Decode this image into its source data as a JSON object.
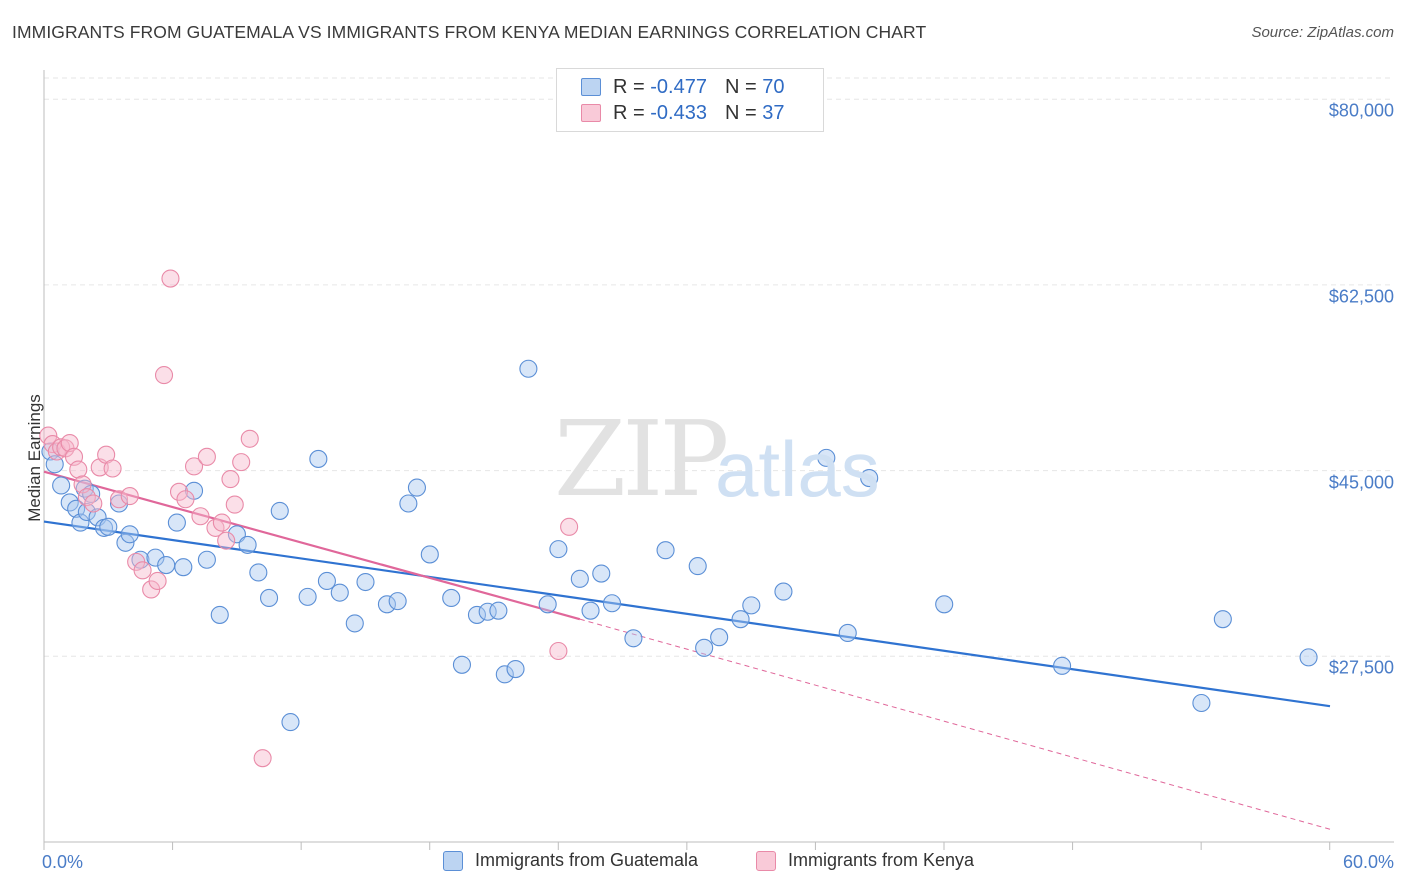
{
  "title": "IMMIGRANTS FROM GUATEMALA VS IMMIGRANTS FROM KENYA MEDIAN EARNINGS CORRELATION CHART",
  "source": "Source: ZipAtlas.com",
  "watermark": {
    "zip": "ZIP",
    "atlas": "atlas"
  },
  "legend": {
    "rows": [
      {
        "r_label": "R =",
        "r_value": "-0.477",
        "n_label": "N =",
        "n_value": "70"
      },
      {
        "r_label": "R =",
        "r_value": "-0.433",
        "n_label": "N =",
        "n_value": "37"
      }
    ]
  },
  "colors": {
    "guatemala_fill": "#a9c8ef",
    "guatemala_stroke": "#5b8fd6",
    "guatemala_line": "#2f73d1",
    "kenya_fill": "#f7b8cb",
    "kenya_stroke": "#e98aa8",
    "kenya_line": "#e0679a",
    "grid": "#e6e6e6",
    "tick_label": "#4a7cc7"
  },
  "chart_data": {
    "type": "scatter",
    "title": "IMMIGRANTS FROM GUATEMALA VS IMMIGRANTS FROM KENYA MEDIAN EARNINGS CORRELATION CHART",
    "xlabel": "",
    "ylabel": "Median Earnings",
    "xlim": [
      0,
      60
    ],
    "ylim": [
      10000,
      82000
    ],
    "x_tick_labels": [
      "0.0%",
      "60.0%"
    ],
    "y_ticks": [
      27500,
      45000,
      62500,
      80000
    ],
    "y_tick_labels": [
      "$27,500",
      "$45,000",
      "$62,500",
      "$80,000"
    ],
    "grid": true,
    "legend_position": "top-center",
    "series": [
      {
        "name": "Immigrants from Guatemala",
        "r": -0.477,
        "n": 70,
        "trend": {
          "x": [
            0,
            60
          ],
          "y": [
            40200,
            22800
          ]
        },
        "points": [
          [
            0.3,
            46800
          ],
          [
            0.5,
            45600
          ],
          [
            0.8,
            43600
          ],
          [
            1.2,
            42000
          ],
          [
            1.5,
            41400
          ],
          [
            1.7,
            40100
          ],
          [
            1.9,
            43300
          ],
          [
            2.0,
            41100
          ],
          [
            2.2,
            42800
          ],
          [
            2.5,
            40600
          ],
          [
            2.8,
            39600
          ],
          [
            3.0,
            39700
          ],
          [
            3.5,
            41900
          ],
          [
            3.8,
            38200
          ],
          [
            4.0,
            39000
          ],
          [
            4.5,
            36600
          ],
          [
            5.2,
            36800
          ],
          [
            5.7,
            36100
          ],
          [
            6.2,
            40100
          ],
          [
            6.5,
            35900
          ],
          [
            7.0,
            43100
          ],
          [
            7.6,
            36600
          ],
          [
            8.2,
            31400
          ],
          [
            9.0,
            39000
          ],
          [
            9.5,
            38000
          ],
          [
            10.0,
            35400
          ],
          [
            10.5,
            33000
          ],
          [
            11.0,
            41200
          ],
          [
            11.5,
            21300
          ],
          [
            12.3,
            33100
          ],
          [
            12.8,
            46100
          ],
          [
            13.2,
            34600
          ],
          [
            13.8,
            33500
          ],
          [
            14.5,
            30600
          ],
          [
            15.0,
            34500
          ],
          [
            16.0,
            32400
          ],
          [
            16.5,
            32700
          ],
          [
            17.0,
            41900
          ],
          [
            17.4,
            43400
          ],
          [
            18.0,
            37100
          ],
          [
            19.0,
            33000
          ],
          [
            19.5,
            26700
          ],
          [
            20.2,
            31400
          ],
          [
            20.7,
            31700
          ],
          [
            21.2,
            31800
          ],
          [
            21.5,
            25800
          ],
          [
            22.0,
            26300
          ],
          [
            22.6,
            54600
          ],
          [
            23.5,
            32400
          ],
          [
            24.0,
            37600
          ],
          [
            25.0,
            34800
          ],
          [
            25.5,
            31800
          ],
          [
            26.0,
            35300
          ],
          [
            26.5,
            32500
          ],
          [
            27.5,
            29200
          ],
          [
            29.0,
            37500
          ],
          [
            30.5,
            36000
          ],
          [
            30.8,
            28300
          ],
          [
            31.5,
            29300
          ],
          [
            32.5,
            31000
          ],
          [
            33.0,
            32300
          ],
          [
            34.5,
            33600
          ],
          [
            36.5,
            46200
          ],
          [
            37.5,
            29700
          ],
          [
            38.5,
            44300
          ],
          [
            42.0,
            32400
          ],
          [
            47.5,
            26600
          ],
          [
            54.0,
            23100
          ],
          [
            55.0,
            31000
          ],
          [
            59.0,
            27400
          ]
        ]
      },
      {
        "name": "Immigrants from Kenya",
        "r": -0.433,
        "n": 37,
        "trend": {
          "x": [
            0,
            25
          ],
          "y": [
            44900,
            31000
          ]
        },
        "trend_extended": {
          "x": [
            25,
            60
          ],
          "y": [
            31000,
            11200
          ]
        },
        "points": [
          [
            0.2,
            48300
          ],
          [
            0.4,
            47500
          ],
          [
            0.6,
            46800
          ],
          [
            0.8,
            47200
          ],
          [
            1.0,
            47100
          ],
          [
            1.2,
            47600
          ],
          [
            1.4,
            46300
          ],
          [
            1.6,
            45100
          ],
          [
            1.8,
            43700
          ],
          [
            2.0,
            42500
          ],
          [
            2.3,
            41900
          ],
          [
            2.6,
            45300
          ],
          [
            2.9,
            46500
          ],
          [
            3.2,
            45200
          ],
          [
            3.5,
            42300
          ],
          [
            4.0,
            42600
          ],
          [
            4.3,
            36400
          ],
          [
            4.6,
            35600
          ],
          [
            5.0,
            33800
          ],
          [
            5.3,
            34600
          ],
          [
            5.6,
            54000
          ],
          [
            5.9,
            63100
          ],
          [
            6.3,
            43000
          ],
          [
            6.6,
            42300
          ],
          [
            7.0,
            45400
          ],
          [
            7.3,
            40700
          ],
          [
            7.6,
            46300
          ],
          [
            8.0,
            39600
          ],
          [
            8.3,
            40100
          ],
          [
            8.5,
            38400
          ],
          [
            8.7,
            44200
          ],
          [
            8.9,
            41800
          ],
          [
            9.2,
            45800
          ],
          [
            9.6,
            48000
          ],
          [
            10.2,
            17900
          ],
          [
            24.0,
            28000
          ],
          [
            24.5,
            39700
          ]
        ]
      }
    ]
  },
  "bottom_legend": [
    {
      "label": "Immigrants from Guatemala"
    },
    {
      "label": "Immigrants from Kenya"
    }
  ]
}
